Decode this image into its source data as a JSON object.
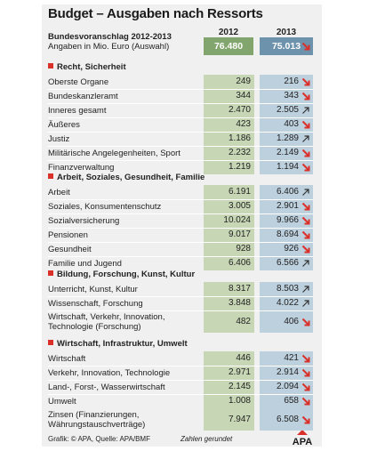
{
  "chart_data": {
    "type": "table",
    "title": "Budget – Ausgaben nach Ressorts",
    "subtitle1": "Bundesvoranschlag 2012-2013",
    "subtitle2": "Angaben in Mio. Euro (Auswahl)",
    "years": [
      "2012",
      "2013"
    ],
    "total": {
      "v2012": "76.480",
      "v2013": "75.013",
      "trend": "down"
    },
    "sections": [
      {
        "name": "Recht, Sicherheit",
        "rows": [
          {
            "label": "Oberste Organe",
            "v2012": "249",
            "v2013": "216",
            "trend": "down"
          },
          {
            "label": "Bundeskanzleramt",
            "v2012": "344",
            "v2013": "343",
            "trend": "down"
          },
          {
            "label": "Inneres gesamt",
            "v2012": "2.470",
            "v2013": "2.505",
            "trend": "up"
          },
          {
            "label": "Äußeres",
            "v2012": "423",
            "v2013": "403",
            "trend": "down"
          },
          {
            "label": "Justiz",
            "v2012": "1.186",
            "v2013": "1.289",
            "trend": "up"
          },
          {
            "label": "Militärische Angelegenheiten, Sport",
            "v2012": "2.232",
            "v2013": "2.149",
            "trend": "down"
          },
          {
            "label": "Finanzverwaltung",
            "v2012": "1.219",
            "v2013": "1.194",
            "trend": "down"
          }
        ]
      },
      {
        "name": "Arbeit, Soziales, Gesundheit, Familie",
        "rows": [
          {
            "label": "Arbeit",
            "v2012": "6.191",
            "v2013": "6.406",
            "trend": "up"
          },
          {
            "label": "Soziales, Konsumentenschutz",
            "v2012": "3.005",
            "v2013": "2.901",
            "trend": "down"
          },
          {
            "label": "Sozialversicherung",
            "v2012": "10.024",
            "v2013": "9.966",
            "trend": "down"
          },
          {
            "label": "Pensionen",
            "v2012": "9.017",
            "v2013": "8.694",
            "trend": "down"
          },
          {
            "label": "Gesundheit",
            "v2012": "928",
            "v2013": "926",
            "trend": "down"
          },
          {
            "label": "Familie und Jugend",
            "v2012": "6.406",
            "v2013": "6.566",
            "trend": "up"
          }
        ]
      },
      {
        "name": "Bildung, Forschung, Kunst, Kultur",
        "rows": [
          {
            "label": "Unterricht, Kunst, Kultur",
            "v2012": "8.317",
            "v2013": "8.503",
            "trend": "up"
          },
          {
            "label": "Wissenschaft, Forschung",
            "v2012": "3.848",
            "v2013": "4.022",
            "trend": "up"
          },
          {
            "label": "Wirtschaft, Verkehr, Innovation,",
            "label2": "Technologie (Forschung)",
            "v2012": "482",
            "v2013": "406",
            "trend": "down"
          }
        ]
      },
      {
        "name": "Wirtschaft, Infrastruktur, Umwelt",
        "rows": [
          {
            "label": "Wirtschaft",
            "v2012": "446",
            "v2013": "421",
            "trend": "down"
          },
          {
            "label": "Verkehr, Innovation, Technologie",
            "v2012": "2.971",
            "v2013": "2.914",
            "trend": "down"
          },
          {
            "label": "Land-, Forst-, Wasserwirtschaft",
            "v2012": "2.145",
            "v2013": "2.094",
            "trend": "down"
          },
          {
            "label": "Umwelt",
            "v2012": "1.008",
            "v2013": "658",
            "trend": "down"
          }
        ]
      },
      {
        "name": "",
        "rows": [
          {
            "label": "Zinsen (Finanzierungen,",
            "label2": "Währungstauschverträge)",
            "v2012": "7.947",
            "v2013": "6.508",
            "trend": "down"
          }
        ]
      }
    ]
  },
  "footer": {
    "source": "Grafik: © APA, Quelle: APA/BMF",
    "note": "Zahlen gerundet",
    "logo": "APA"
  },
  "colors": {
    "bg": "#f0f0f0",
    "col2012": "#c7d7b5",
    "col2013": "#bdd0de",
    "total2012": "#82a56d",
    "total2013": "#6d92ac",
    "accent": "#d9302a"
  }
}
